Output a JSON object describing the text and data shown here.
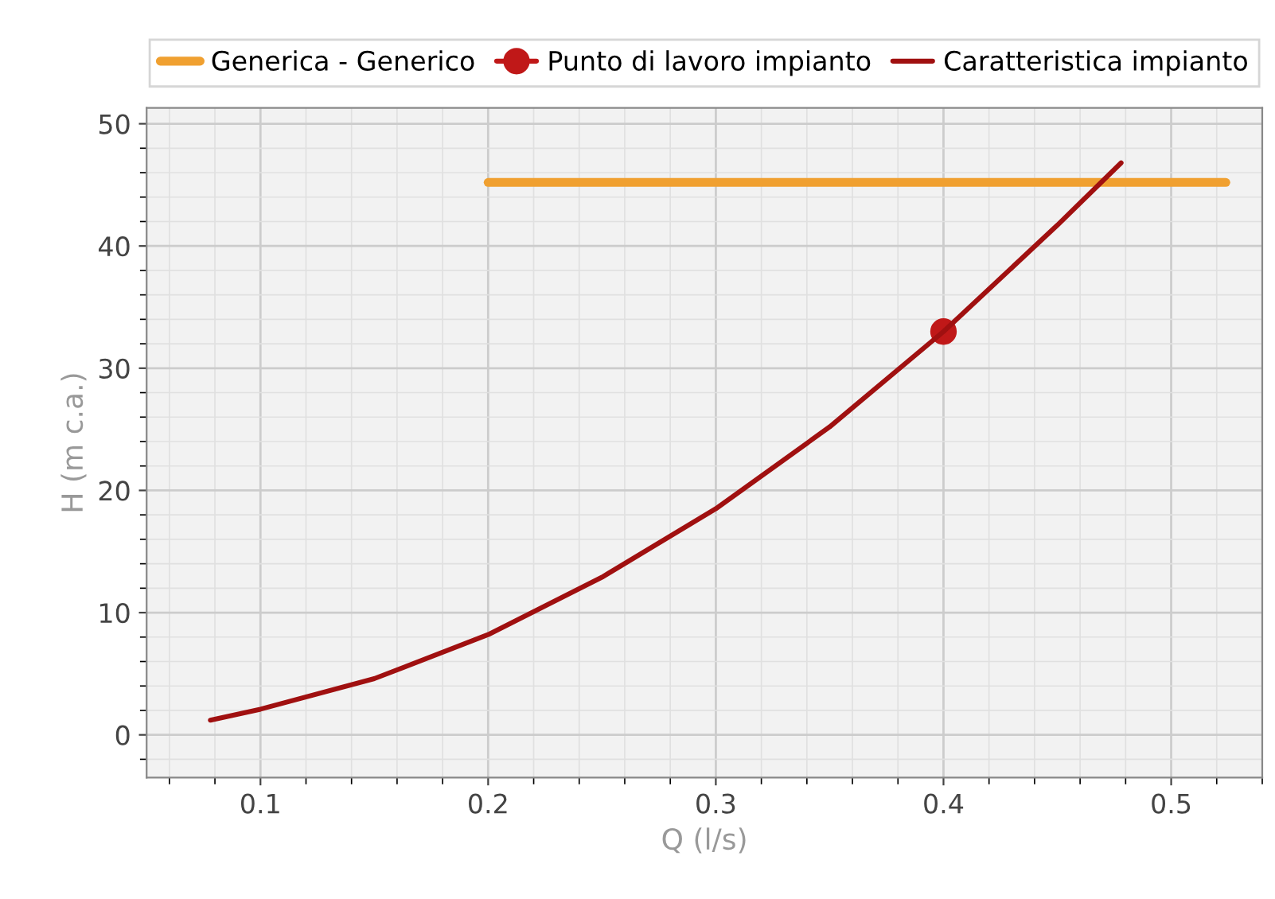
{
  "chart_data": {
    "type": "line",
    "xlabel": "Q (l/s)",
    "ylabel": "H (m c.a.)",
    "xlim": [
      0.05,
      0.54
    ],
    "ylim": [
      -3.5,
      51.3
    ],
    "xticks": [
      {
        "value": 0.1,
        "label": "0.1"
      },
      {
        "value": 0.2,
        "label": "0.2"
      },
      {
        "value": 0.3,
        "label": "0.3"
      },
      {
        "value": 0.4,
        "label": "0.4"
      },
      {
        "value": 0.5,
        "label": "0.5"
      }
    ],
    "yticks": [
      0,
      10,
      20,
      30,
      40,
      50
    ],
    "grid": true,
    "legend": "top",
    "series": [
      {
        "name": "Generica - Generico",
        "color": "#f0a030",
        "x": [
          0.2,
          0.524
        ],
        "values": [
          45.2,
          45.2
        ],
        "marker": "none"
      },
      {
        "name": "Punto di lavoro impianto",
        "color": "#c01818",
        "x": [
          0.4
        ],
        "values": [
          33
        ],
        "marker": "circle"
      },
      {
        "name": "Caratteristica impianto",
        "color": "#a01010",
        "x": [
          0.078,
          0.1,
          0.15,
          0.2,
          0.25,
          0.3,
          0.35,
          0.4,
          0.45,
          0.478
        ],
        "values": [
          1.2,
          2.1,
          4.6,
          8.2,
          12.9,
          18.5,
          25.2,
          33,
          41.7,
          46.8
        ],
        "marker": "none"
      }
    ]
  }
}
